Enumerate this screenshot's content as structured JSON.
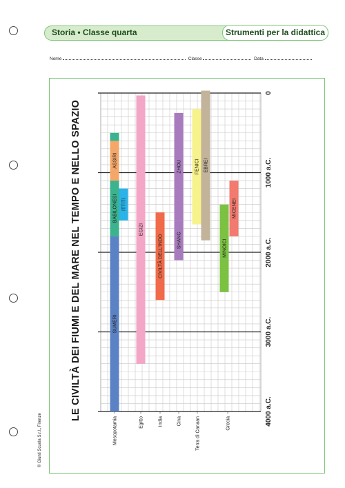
{
  "header": {
    "subject": "Storia • Classe quarta",
    "series": "Strumenti per la didattica"
  },
  "form": {
    "name_label": "Nome",
    "class_label": "Classe",
    "date_label": "Data"
  },
  "copyright": "© Giunti Scuola S.r.l., Firenze",
  "page_title": "LE CIVILTÀ DEI FIUMI E DEL MARE NEL TEMPO E NELLO SPAZIO",
  "chart_data": {
    "type": "timeline",
    "axis_labels": [
      "0",
      "1000 a.C.",
      "2000 a.C.",
      "3000 a.C.",
      "4000 a.C."
    ],
    "regions": [
      "Mesopotamia",
      "Egitto",
      "India",
      "Cina",
      "Terra di Canaan",
      "Grecia"
    ],
    "civilizations": [
      {
        "name": "SUMERI",
        "region": "Mesopotamia",
        "from": 4000,
        "to": 1800,
        "color": "#5b82c4"
      },
      {
        "name": "BABILONESI",
        "region": "Mesopotamia",
        "from": 1800,
        "to": 1100,
        "color": "#3bb38e"
      },
      {
        "name": "ASSIRI",
        "region": "Mesopotamia",
        "from": 1100,
        "to": 600,
        "color": "#f4a768"
      },
      {
        "name": "",
        "region": "Mesopotamia",
        "from": 600,
        "to": 500,
        "color": "#3bb38e"
      },
      {
        "name": "ITTITI",
        "region": "Mesopotamia",
        "from": 1600,
        "to": 1200,
        "color": "#29b3e8"
      },
      {
        "name": "EGIZI",
        "region": "Egitto",
        "from": 3400,
        "to": 30,
        "color": "#f4a6c6"
      },
      {
        "name": "CIVILTÀ DELL'INDO",
        "region": "India",
        "from": 2600,
        "to": 1500,
        "color": "#ef6b4a"
      },
      {
        "name": "SHANG",
        "region": "Cina",
        "from": 2100,
        "to": 1600,
        "color": "#a77bbd"
      },
      {
        "name": "ZHOU",
        "region": "Cina",
        "from": 1600,
        "to": 250,
        "color": "#a77bbd"
      },
      {
        "name": "FENICI",
        "region": "Terra di Canaan",
        "from": 1650,
        "to": 200,
        "color": "#f7f28c"
      },
      {
        "name": "EBREI",
        "region": "Terra di Canaan",
        "from": 1850,
        "to": -30,
        "color": "#c2b39a"
      },
      {
        "name": "MINOICI",
        "region": "Grecia",
        "from": 2500,
        "to": 1400,
        "color": "#7cc242"
      },
      {
        "name": "MICENEI",
        "region": "Grecia",
        "from": 1800,
        "to": 1100,
        "color": "#f37a6e"
      }
    ]
  }
}
